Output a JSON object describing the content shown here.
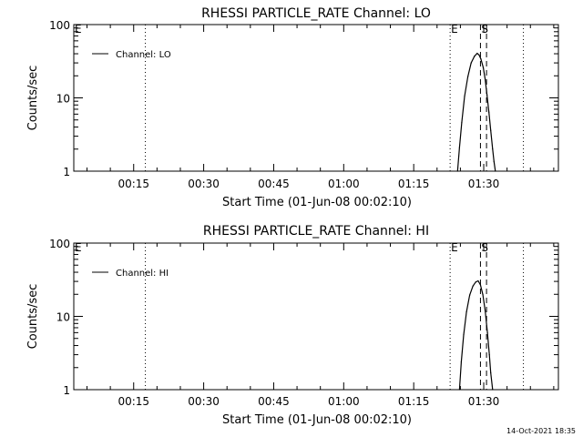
{
  "timestamp": "14-Oct-2021 18:35",
  "colors": {
    "line": "#000000",
    "background": "#ffffff"
  },
  "chart_data": [
    {
      "type": "line",
      "title": "RHESSI PARTICLE_RATE Channel: LO",
      "xlabel": "Start Time (01-Jun-08 00:02:10)",
      "ylabel": "Counts/sec",
      "yscale": "log",
      "xlim": [
        2.17,
        106
      ],
      "ylim": [
        1,
        100
      ],
      "xticks": [
        15,
        30,
        45,
        60,
        75,
        90
      ],
      "xtick_labels": [
        "00:15",
        "00:30",
        "00:45",
        "01:00",
        "01:15",
        "01:30"
      ],
      "yticks": [
        1,
        10,
        100
      ],
      "ytick_labels": [
        "1",
        "10",
        "100"
      ],
      "legend": {
        "position": "top-left",
        "entries": [
          "Channel: LO"
        ]
      },
      "markers": [
        {
          "x": 2.17,
          "style": "dotted",
          "label": "E"
        },
        {
          "x": 17.5,
          "style": "dotted",
          "label": ""
        },
        {
          "x": 82.8,
          "style": "dotted",
          "label": "E"
        },
        {
          "x": 89.3,
          "style": "dashed",
          "label": "S"
        },
        {
          "x": 90.6,
          "style": "dashed",
          "label": ""
        },
        {
          "x": 98.5,
          "style": "dotted",
          "label": ""
        }
      ],
      "series": [
        {
          "name": "Channel: LO",
          "x": [
            84.4,
            84.8,
            85.3,
            85.9,
            86.6,
            87.3,
            88.0,
            88.6,
            89.0,
            89.4,
            89.9,
            90.3,
            90.7,
            91.1,
            91.5,
            91.9,
            92.2,
            92.5
          ],
          "y": [
            1.0,
            2.1,
            4.6,
            10.5,
            19.5,
            30,
            37,
            40.5,
            38.5,
            34,
            26,
            18,
            11,
            6.4,
            3.6,
            2.0,
            1.35,
            1.0
          ]
        }
      ]
    },
    {
      "type": "line",
      "title": "RHESSI PARTICLE_RATE Channel: HI",
      "xlabel": "Start Time (01-Jun-08 00:02:10)",
      "ylabel": "Counts/sec",
      "yscale": "log",
      "xlim": [
        2.17,
        106
      ],
      "ylim": [
        1,
        100
      ],
      "xticks": [
        15,
        30,
        45,
        60,
        75,
        90
      ],
      "xtick_labels": [
        "00:15",
        "00:30",
        "00:45",
        "01:00",
        "01:15",
        "01:30"
      ],
      "yticks": [
        1,
        10,
        100
      ],
      "ytick_labels": [
        "1",
        "10",
        "100"
      ],
      "legend": {
        "position": "top-left",
        "entries": [
          "Channel: HI"
        ]
      },
      "markers": [
        {
          "x": 2.17,
          "style": "dotted",
          "label": "E"
        },
        {
          "x": 17.5,
          "style": "dotted",
          "label": ""
        },
        {
          "x": 82.8,
          "style": "dotted",
          "label": "E"
        },
        {
          "x": 89.3,
          "style": "dashed",
          "label": "S"
        },
        {
          "x": 90.6,
          "style": "dashed",
          "label": ""
        },
        {
          "x": 98.5,
          "style": "dotted",
          "label": ""
        }
      ],
      "series": [
        {
          "name": "Channel: HI",
          "x": [
            84.8,
            85.2,
            85.7,
            86.3,
            87.0,
            87.7,
            88.3,
            88.8,
            89.3,
            89.8,
            90.3,
            90.8,
            91.2,
            91.5,
            91.9
          ],
          "y": [
            1.0,
            2.4,
            5.6,
            11.5,
            19.5,
            26,
            29.5,
            30.5,
            27,
            20,
            12,
            6.0,
            3.0,
            1.7,
            1.0
          ]
        }
      ]
    }
  ]
}
